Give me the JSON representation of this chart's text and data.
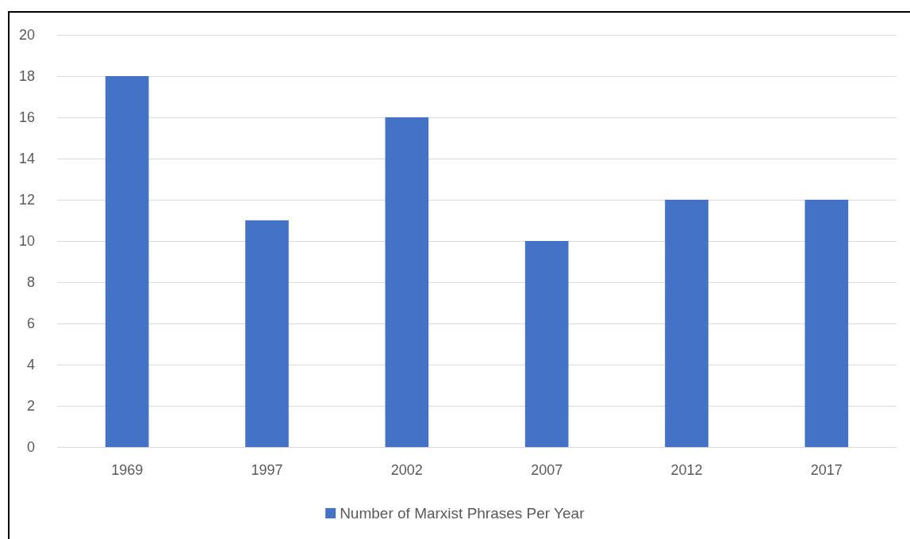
{
  "chart_data": {
    "type": "bar",
    "categories": [
      "1969",
      "1997",
      "2002",
      "2007",
      "2012",
      "2017"
    ],
    "series": [
      {
        "name": "Number of Marxist Phrases Per Year",
        "color": "#4472c4",
        "values": [
          18,
          11,
          16,
          10,
          12,
          12
        ]
      }
    ],
    "ylim": [
      0,
      20
    ],
    "yticks": [
      0,
      2,
      4,
      6,
      8,
      10,
      12,
      14,
      16,
      18,
      20
    ],
    "grid": "y",
    "legend": "bottom"
  }
}
